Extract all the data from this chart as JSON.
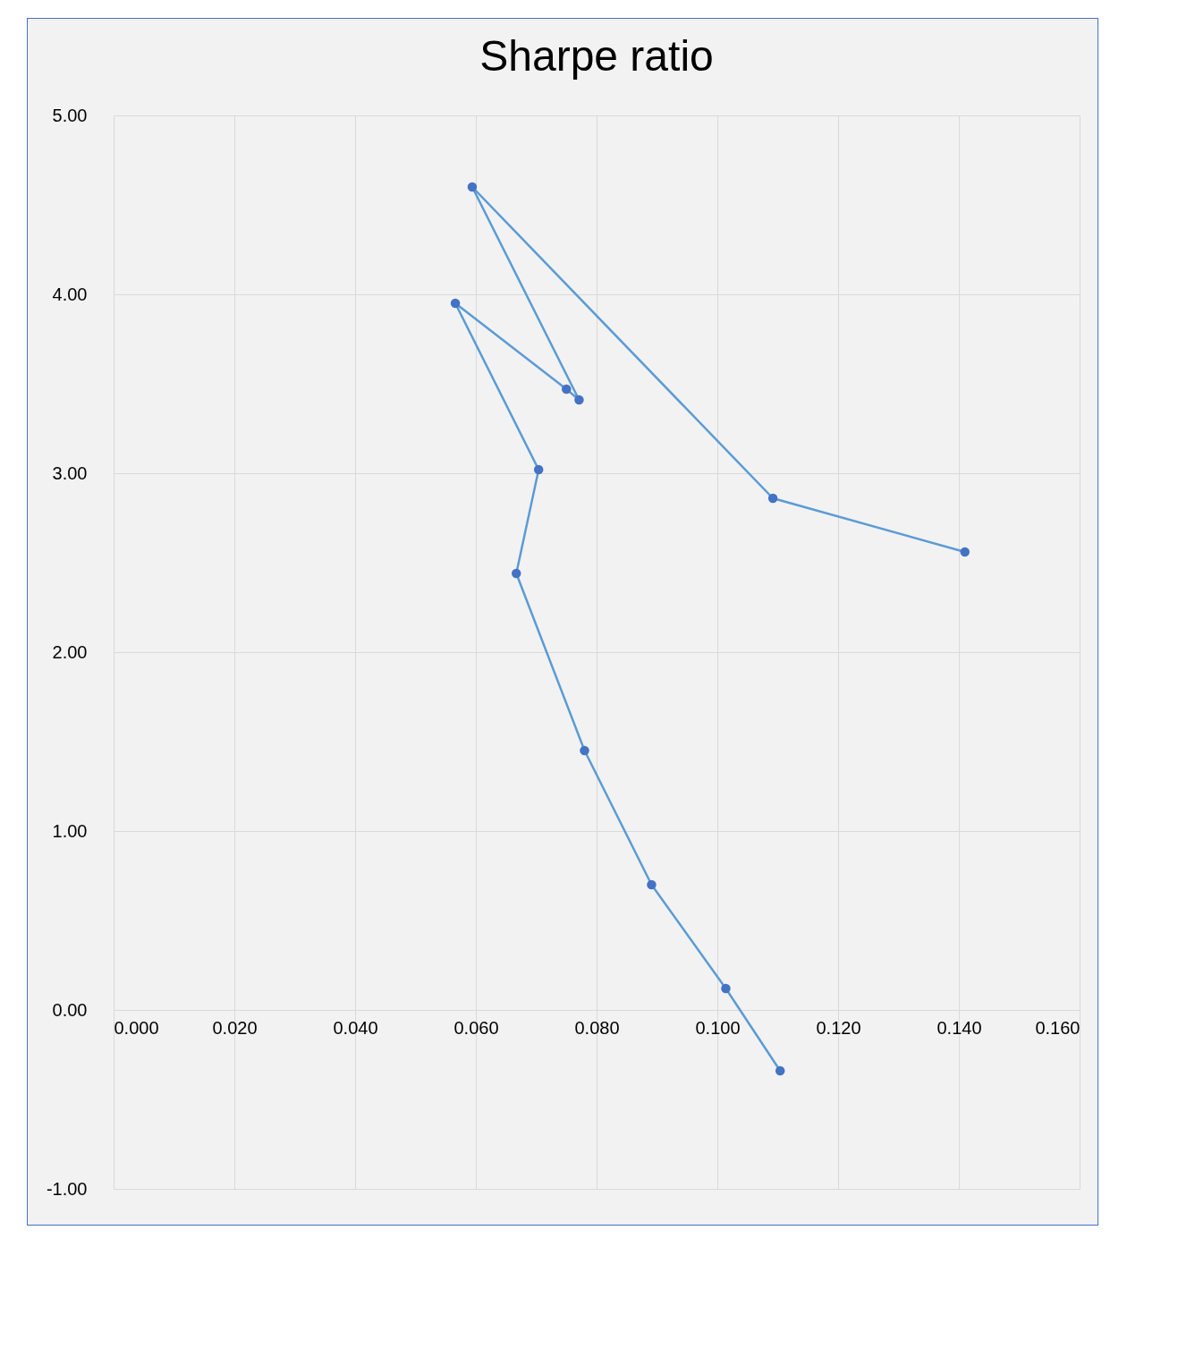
{
  "chart_data": {
    "type": "line",
    "title": "Sharpe ratio",
    "x": [
      0.141,
      0.1092,
      0.0594,
      0.0771,
      0.075,
      0.0566,
      0.0704,
      0.0667,
      0.078,
      0.0891,
      0.1014,
      0.1104
    ],
    "series": [
      {
        "color": "#5b9bd5",
        "values": [
          2.56,
          2.86,
          4.6,
          3.41,
          3.47,
          3.95,
          3.02,
          2.44,
          1.45,
          0.7,
          0.12,
          -0.34
        ]
      }
    ],
    "xlim": [
      0,
      0.16
    ],
    "xticks": [
      {
        "value": 0,
        "label": "0.000"
      },
      {
        "value": 0.02,
        "label": "0.020"
      },
      {
        "value": 0.04,
        "label": "0.040"
      },
      {
        "value": 0.06,
        "label": "0.060"
      },
      {
        "value": 0.08,
        "label": "0.080"
      },
      {
        "value": 0.1,
        "label": "0.100"
      },
      {
        "value": 0.12,
        "label": "0.120"
      },
      {
        "value": 0.14,
        "label": "0.140"
      },
      {
        "value": 0.16,
        "label": "0.160"
      }
    ],
    "ylim": [
      -1,
      5
    ],
    "yticks": [
      {
        "value": -1,
        "label": "-1.00"
      },
      {
        "value": 0,
        "label": "0.00"
      },
      {
        "value": 1,
        "label": "1.00"
      },
      {
        "value": 2,
        "label": "2.00"
      },
      {
        "value": 3,
        "label": "3.00"
      },
      {
        "value": 4,
        "label": "4.00"
      },
      {
        "value": 5,
        "label": "5.00"
      }
    ],
    "grid": true,
    "marker": "circle",
    "line_style": "solid"
  }
}
